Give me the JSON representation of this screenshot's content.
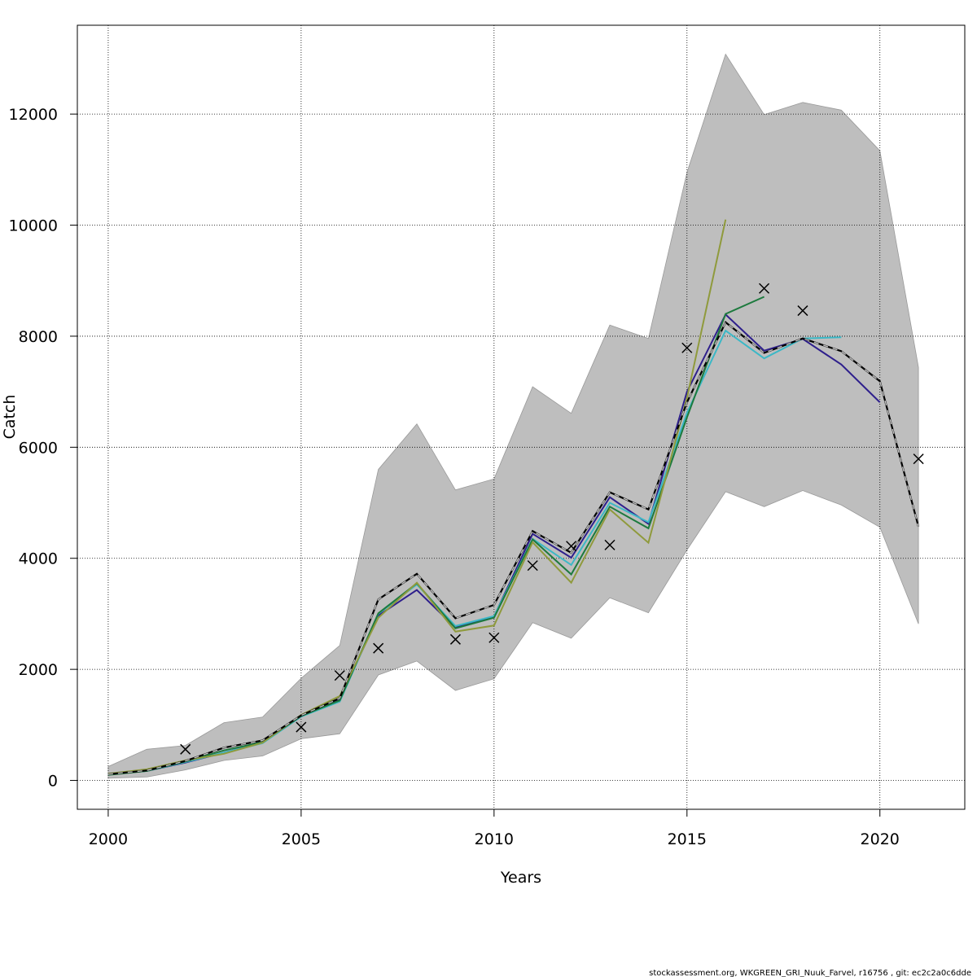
{
  "chart_data": {
    "type": "line",
    "xlabel": "Years",
    "ylabel": "Catch",
    "xlim": [
      1999.2,
      2022.2
    ],
    "ylim": [
      -520,
      13600
    ],
    "x_ticks": [
      2000,
      2005,
      2010,
      2015,
      2020
    ],
    "y_ticks": [
      0,
      2000,
      4000,
      6000,
      8000,
      10000,
      12000
    ],
    "grid": true,
    "confidence_band": {
      "x": [
        2000,
        2001,
        2002,
        2003,
        2004,
        2005,
        2006,
        2007,
        2008,
        2009,
        2010,
        2011,
        2012,
        2013,
        2014,
        2015,
        2016,
        2017,
        2018,
        2019,
        2020,
        2021
      ],
      "lower": [
        40,
        60,
        190,
        360,
        440,
        750,
        840,
        1900,
        2150,
        1620,
        1830,
        2840,
        2560,
        3290,
        3020,
        4150,
        5200,
        4930,
        5220,
        4960,
        4560,
        2820
      ],
      "upper": [
        250,
        560,
        630,
        1040,
        1140,
        1840,
        2430,
        5600,
        6420,
        5230,
        5430,
        7090,
        6610,
        8200,
        7960,
        10950,
        13080,
        11990,
        12210,
        12070,
        11340,
        7440
      ]
    },
    "series": [
      {
        "color": "#2e1f8c",
        "x": [
          2000,
          2001,
          2002,
          2003,
          2004,
          2005,
          2006,
          2007,
          2008,
          2009,
          2010,
          2011,
          2012,
          2013,
          2014,
          2015,
          2016,
          2017,
          2018,
          2019,
          2020
        ],
        "values": [
          110,
          170,
          320,
          500,
          680,
          1150,
          1460,
          2970,
          3430,
          2750,
          2950,
          4440,
          4010,
          5100,
          4620,
          7000,
          8390,
          7740,
          7950,
          7490,
          6810
        ]
      },
      {
        "color": "#3bb8c6",
        "x": [
          2000,
          2001,
          2002,
          2003,
          2004,
          2005,
          2006,
          2007,
          2008,
          2009,
          2010,
          2011,
          2012,
          2013,
          2014,
          2015,
          2016,
          2017,
          2018,
          2019
        ],
        "values": [
          110,
          170,
          330,
          500,
          670,
          1150,
          1420,
          3000,
          3530,
          2780,
          2960,
          4350,
          3880,
          5000,
          4650,
          6620,
          8100,
          7600,
          7960,
          7980
        ]
      },
      {
        "color": "#1d7a3e",
        "x": [
          2000,
          2001,
          2002,
          2003,
          2004,
          2005,
          2006,
          2007,
          2008,
          2009,
          2010,
          2011,
          2012,
          2013,
          2014,
          2015,
          2016,
          2017
        ],
        "values": [
          100,
          170,
          340,
          540,
          690,
          1160,
          1440,
          3010,
          3550,
          2740,
          2930,
          4340,
          3710,
          4930,
          4540,
          6540,
          8400,
          8710
        ]
      },
      {
        "color": "#8f9a3c",
        "x": [
          2000,
          2001,
          2002,
          2003,
          2004,
          2005,
          2006,
          2007,
          2008,
          2009,
          2010,
          2011,
          2012,
          2013,
          2014,
          2015,
          2016
        ],
        "values": [
          120,
          200,
          360,
          480,
          680,
          1180,
          1520,
          2930,
          3560,
          2680,
          2790,
          4290,
          3560,
          4880,
          4280,
          6890,
          10100
        ]
      },
      {
        "color": "#4d4d4d",
        "dashed": true,
        "x": [
          2000,
          2001,
          2002,
          2003,
          2004,
          2005,
          2006,
          2007,
          2008,
          2009,
          2010,
          2011,
          2012,
          2013,
          2014,
          2015,
          2016,
          2017,
          2018,
          2019,
          2020,
          2021
        ],
        "values": [
          110,
          180,
          350,
          590,
          720,
          1170,
          1480,
          3260,
          3720,
          2920,
          3160,
          4490,
          4100,
          5190,
          4880,
          6810,
          8250,
          7700,
          7960,
          7730,
          7190,
          4570
        ]
      }
    ],
    "observed": {
      "x": [
        2002,
        2005,
        2006,
        2007,
        2009,
        2010,
        2011,
        2012,
        2013,
        2015,
        2017,
        2018,
        2021
      ],
      "values": [
        560,
        960,
        1890,
        2380,
        2540,
        2570,
        3870,
        4220,
        4240,
        7790,
        8860,
        8460,
        5790
      ]
    }
  },
  "footer": "stockassessment.org, WKGREEN_GRI_Nuuk_Farvel, r16756 , git: ec2c2a0c6dde"
}
